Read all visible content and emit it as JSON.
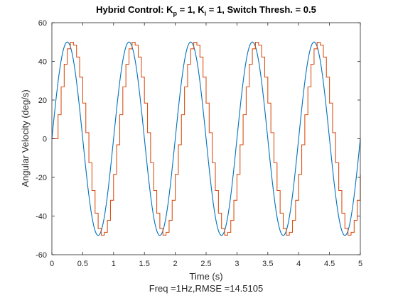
{
  "window": {
    "background": "#ffffff"
  },
  "chart_data": {
    "type": "line",
    "title": {
      "pre": "Hybrid Control: K",
      "sub1": "p",
      "mid": " = 1, K",
      "sub2": "i",
      "post": " = 1, Switch Thresh. = 0.5"
    },
    "xlabel": "Time (s)",
    "xlabel2": "Freq =1Hz,RMSE =14.5105",
    "ylabel": "Angular Velocity (deg/s)",
    "xlim": [
      0,
      5
    ],
    "ylim": [
      -60,
      60
    ],
    "xticks": [
      0,
      0.5,
      1,
      1.5,
      2,
      2.5,
      3,
      3.5,
      4,
      4.5,
      5
    ],
    "xtick_labels": [
      "0",
      "0.5",
      "1",
      "1.5",
      "2",
      "2.5",
      "3",
      "3.5",
      "4",
      "4.5",
      "5"
    ],
    "yticks": [
      -60,
      -40,
      -20,
      0,
      20,
      40,
      60
    ],
    "ytick_labels": [
      "-60",
      "-40",
      "-20",
      "0",
      "20",
      "40",
      "60"
    ],
    "grid": false,
    "legend": "none",
    "series": [
      {
        "color": "#0072BD",
        "kind": "sine",
        "amplitude": 50,
        "frequency_hz": 1,
        "start": 0
      },
      {
        "color": "#D95319",
        "kind": "stepped",
        "amplitude": 50,
        "frequency_hz": 1,
        "delay_s": 0.06,
        "step_interval_s": 0.05,
        "start": 0
      }
    ]
  }
}
